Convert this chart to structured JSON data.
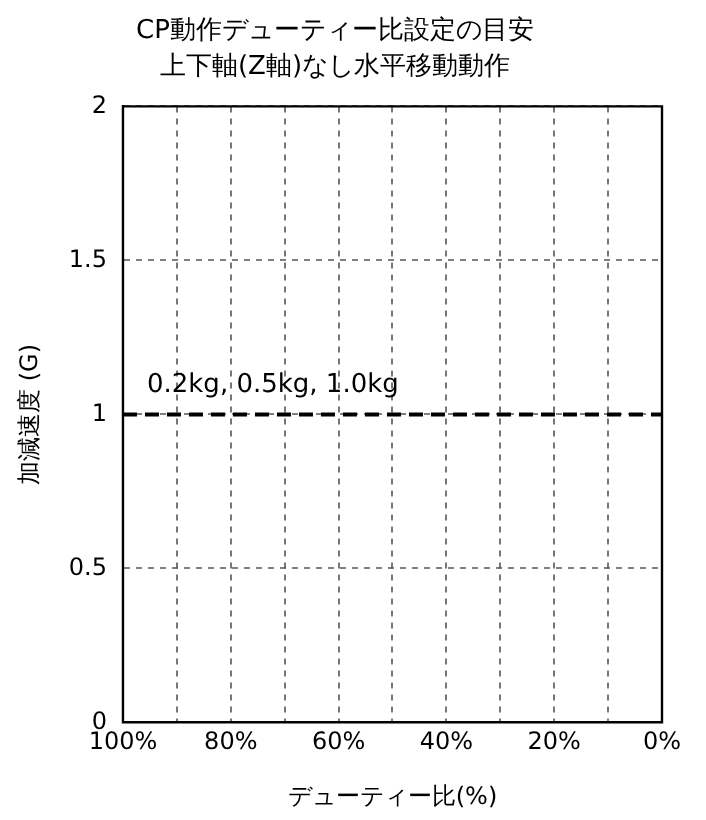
{
  "chart_data": {
    "type": "line",
    "title": "CP動作デューティー比設定の目安",
    "subtitle": "上下軸(Z軸)なし水平移動動作",
    "xlabel": "デューティー比(%)",
    "ylabel": "加減速度 (G)",
    "xlim": [
      100,
      0
    ],
    "xticks": [
      {
        "value": 100,
        "label": "100%"
      },
      {
        "value": 90,
        "label": null
      },
      {
        "value": 80,
        "label": "80%"
      },
      {
        "value": 70,
        "label": null
      },
      {
        "value": 60,
        "label": "60%"
      },
      {
        "value": 50,
        "label": null
      },
      {
        "value": 40,
        "label": "40%"
      },
      {
        "value": 30,
        "label": null
      },
      {
        "value": 20,
        "label": "20%"
      },
      {
        "value": 10,
        "label": null
      },
      {
        "value": 0,
        "label": "0%"
      }
    ],
    "ylim": [
      0,
      2
    ],
    "yticks": [
      0,
      0.5,
      1,
      1.5,
      2
    ],
    "grid": true,
    "legend": false,
    "marker": "none",
    "line_style": "dashed",
    "series": [
      {
        "name": "0.2kg, 0.5kg, 1.0kg",
        "color": "#000000",
        "x": [
          100,
          0
        ],
        "values": [
          1,
          1
        ]
      }
    ]
  }
}
